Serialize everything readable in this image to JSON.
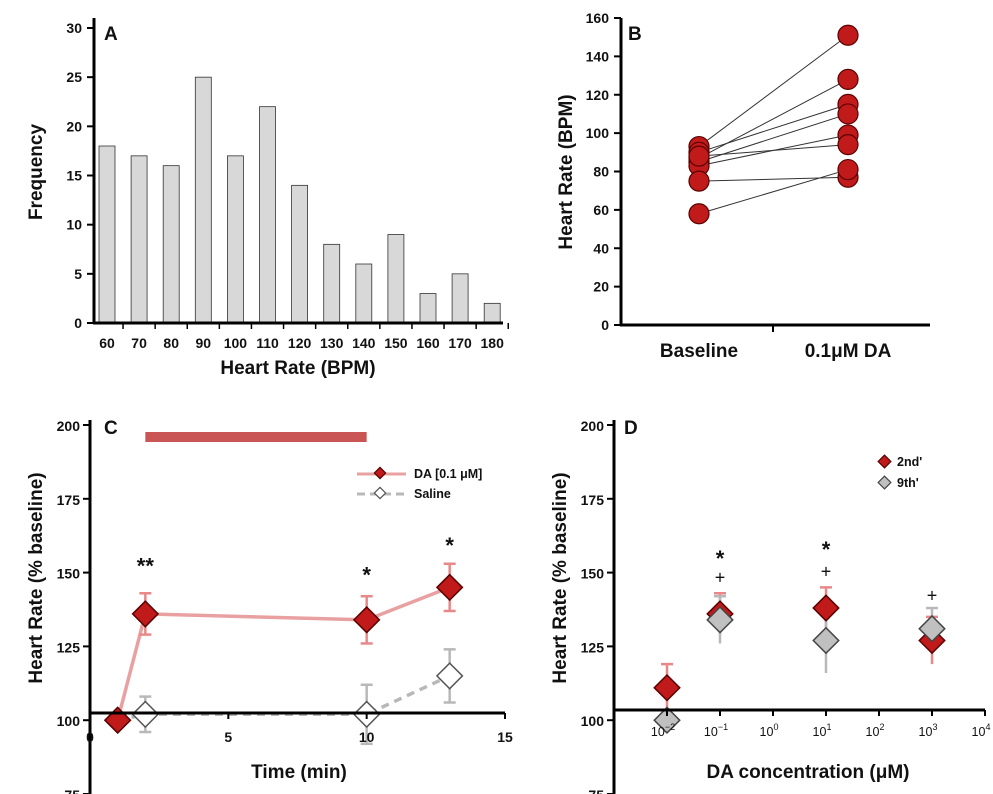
{
  "colors": {
    "red": "#c01a1a",
    "red_edge": "#5a0000",
    "pink_line": "#e8a0a0",
    "pink_err": "#e88888",
    "bar_band": "#c95555",
    "gray_fill": "#c0c0c0",
    "gray_line": "#b8b8b8",
    "hist_fill": "#d8d8d8"
  },
  "chart_data": [
    {
      "panel": "A",
      "type": "bar",
      "title": "A",
      "xlabel": "Heart Rate (BPM)",
      "ylabel": "Frequency",
      "categories": [
        "60",
        "70",
        "80",
        "90",
        "100",
        "110",
        "120",
        "130",
        "140",
        "150",
        "160",
        "170",
        "180"
      ],
      "values": [
        18,
        17,
        16,
        25,
        17,
        22,
        14,
        8,
        6,
        9,
        3,
        5,
        2
      ],
      "ylim": [
        0,
        30
      ],
      "yticks": [
        0,
        5,
        10,
        15,
        20,
        25,
        30
      ],
      "grid": false
    },
    {
      "panel": "B",
      "type": "scatter",
      "title": "B",
      "xlabel": "",
      "ylabel": "Heart Rate (BPM)",
      "categories": [
        "Baseline",
        "0.1μM DA"
      ],
      "pairs": [
        [
          93,
          151
        ],
        [
          87,
          128
        ],
        [
          90,
          115
        ],
        [
          85,
          110
        ],
        [
          83,
          99
        ],
        [
          88,
          94
        ],
        [
          75,
          77
        ],
        [
          58,
          81
        ]
      ],
      "ylim": [
        0,
        160
      ],
      "yticks": [
        0,
        20,
        40,
        60,
        80,
        100,
        120,
        140,
        160
      ],
      "grid": false
    },
    {
      "panel": "C",
      "type": "line",
      "title": "C",
      "xlabel": "Time (min)",
      "ylabel": "Heart Rate (% baseline)",
      "xlim": [
        0,
        15
      ],
      "xticks": [
        "0",
        "5",
        "10",
        "15"
      ],
      "ylim": [
        75,
        200
      ],
      "yticks": [
        "75",
        "100",
        "125",
        "150",
        "175",
        "200"
      ],
      "treatment_bar": [
        2,
        10
      ],
      "series": [
        {
          "name": "DA [0.1 μM]",
          "x": [
            1,
            2,
            10,
            13
          ],
          "y": [
            100,
            136,
            134,
            145
          ],
          "err": [
            0,
            7,
            8,
            8
          ]
        },
        {
          "name": "Saline",
          "x": [
            1,
            2,
            10,
            13
          ],
          "y": [
            100,
            102,
            102,
            115
          ],
          "err": [
            0,
            6,
            10,
            9
          ]
        }
      ],
      "annotations": [
        {
          "text": "**",
          "x": 2,
          "y": 153
        },
        {
          "text": "*",
          "x": 10,
          "y": 150
        },
        {
          "text": "*",
          "x": 13,
          "y": 160
        }
      ],
      "legend": "top-right"
    },
    {
      "panel": "D",
      "type": "scatter",
      "title": "D",
      "xlabel": "DA concentration (μM)",
      "ylabel": "Heart Rate (% baseline)",
      "xscale": "log",
      "xlim_exp": [
        -3,
        4
      ],
      "xtick_labels": [
        {
          "base": "10",
          "exp": "−2",
          "v": -2
        },
        {
          "base": "10",
          "exp": "−1",
          "v": -1
        },
        {
          "base": "10",
          "exp": "0",
          "v": 0
        },
        {
          "base": "10",
          "exp": "1",
          "v": 1
        },
        {
          "base": "10",
          "exp": "2",
          "v": 2
        },
        {
          "base": "10",
          "exp": "3",
          "v": 3
        },
        {
          "base": "10",
          "exp": "4",
          "v": 4
        }
      ],
      "ylim": [
        75,
        200
      ],
      "yticks": [
        "75",
        "100",
        "125",
        "150",
        "175",
        "200"
      ],
      "series": [
        {
          "name": "2nd'",
          "x": [
            0.01,
            0.1,
            10,
            1000
          ],
          "y": [
            111,
            136,
            138,
            127
          ],
          "err": [
            8,
            7,
            7,
            8
          ]
        },
        {
          "name": "9th'",
          "x": [
            0.01,
            0.1,
            10,
            1000
          ],
          "y": [
            100,
            134,
            127,
            131
          ],
          "err": [
            0,
            8,
            11,
            7
          ]
        }
      ],
      "annotations": [
        {
          "text": "*",
          "x": 0.1,
          "y": 155
        },
        {
          "text": "+",
          "x": 0.1,
          "y": 149
        },
        {
          "text": "*",
          "x": 10,
          "y": 158
        },
        {
          "text": "+",
          "x": 10,
          "y": 151
        },
        {
          "text": "+",
          "x": 1000,
          "y": 143
        }
      ],
      "legend": "top-right"
    }
  ]
}
